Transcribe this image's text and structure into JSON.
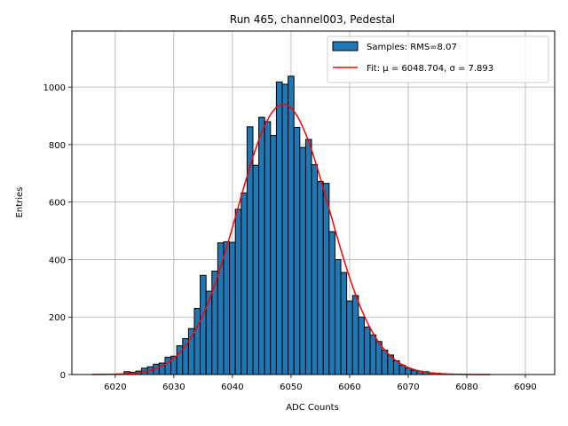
{
  "chart_data": {
    "type": "bar",
    "title": "Run 465, channel003, Pedestal",
    "xlabel": "ADC Counts",
    "ylabel": "Entries",
    "xlim": [
      6012.6,
      6095.0
    ],
    "ylim": [
      0,
      1195
    ],
    "xticks": [
      6020,
      6030,
      6040,
      6050,
      6060,
      6070,
      6080,
      6090
    ],
    "yticks": [
      0,
      200,
      400,
      600,
      800,
      1000
    ],
    "grid": true,
    "legend_position": "top-right",
    "series": [
      {
        "name": "Samples: RMS=8.07",
        "kind": "histogram",
        "color": "#1f77b4",
        "edge_color": "#000000",
        "bin_width": 1,
        "bins": [
          6022,
          6023,
          6024,
          6025,
          6026,
          6027,
          6028,
          6029,
          6030,
          6031,
          6032,
          6033,
          6034,
          6035,
          6036,
          6037,
          6038,
          6039,
          6040,
          6041,
          6042,
          6043,
          6044,
          6045,
          6046,
          6047,
          6048,
          6049,
          6050,
          6051,
          6052,
          6053,
          6054,
          6055,
          6056,
          6057,
          6058,
          6059,
          6060,
          6061,
          6062,
          6063,
          6064,
          6065,
          6066,
          6067,
          6068,
          6069,
          6070,
          6071,
          6072,
          6073,
          6074,
          6075
        ],
        "values": [
          10,
          8,
          12,
          22,
          27,
          36,
          40,
          60,
          64,
          100,
          125,
          160,
          230,
          345,
          290,
          360,
          458,
          462,
          460,
          575,
          632,
          862,
          728,
          895,
          880,
          832,
          1018,
          1010,
          1038,
          860,
          790,
          818,
          730,
          672,
          665,
          497,
          400,
          355,
          256,
          275,
          200,
          165,
          138,
          115,
          85,
          68,
          48,
          32,
          22,
          15,
          12,
          10,
          6,
          4
        ]
      },
      {
        "name": "Fit: μ = 6048.704, σ = 7.893",
        "kind": "fit-line",
        "color": "#ff0000",
        "mu": 6048.704,
        "sigma": 7.893,
        "amplitude": 940,
        "x_range": [
          6016,
          6084
        ]
      }
    ]
  }
}
